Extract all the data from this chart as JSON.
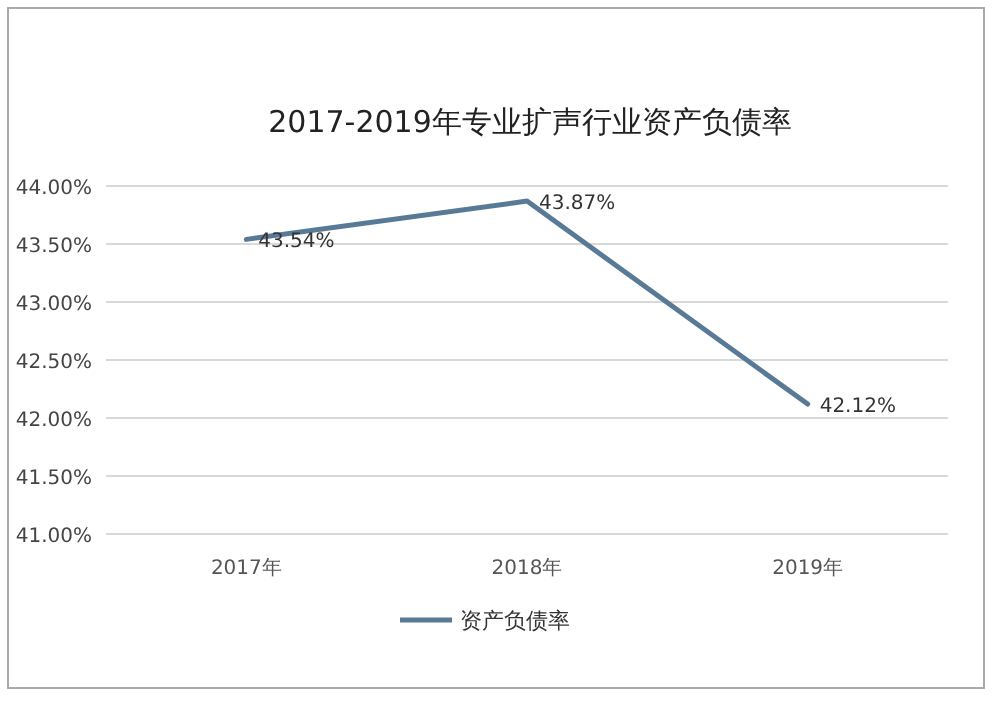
{
  "chart_data": {
    "type": "line",
    "title": "2017-2019年专业扩声行业资产负债率",
    "categories": [
      "2017年",
      "2018年",
      "2019年"
    ],
    "series": [
      {
        "name": "资产负债率",
        "color": "#587a96",
        "values": [
          43.54,
          43.87,
          42.12
        ],
        "value_labels": [
          "43.54%",
          "43.87%",
          "42.12%"
        ]
      }
    ],
    "ylim": [
      41,
      44
    ],
    "yticks": [
      {
        "value": 41,
        "label": "41.00%"
      },
      {
        "value": 41.5,
        "label": "41.50%"
      },
      {
        "value": 42,
        "label": "42.00%"
      },
      {
        "value": 42.5,
        "label": "42.50%"
      },
      {
        "value": 43,
        "label": "43.00%"
      },
      {
        "value": 43.5,
        "label": "43.50%"
      },
      {
        "value": 44,
        "label": "44.00%"
      }
    ],
    "grid": "y",
    "legend": "bottom",
    "marker": "none"
  }
}
